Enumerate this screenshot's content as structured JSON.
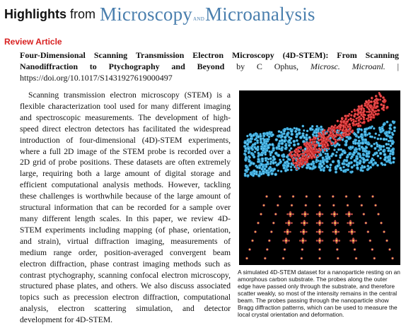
{
  "header": {
    "highlights": "Highlights",
    "from": "from",
    "journal_logo": {
      "part1": "Microscopy",
      "and": "AND",
      "part2": "Microanalysis",
      "color": "#4a7fae"
    }
  },
  "section_label": "Review Article",
  "citation": {
    "title": "Four-Dimensional Scanning Transmission Electron Microscopy (4D-STEM): From Scanning Nanodiffraction to Ptychography and Beyond",
    "by": " by C Ophus, ",
    "journal": "Microsc. Microanl.",
    "separator": " | ",
    "doi": "https://doi.org/10.1017/S1431927619000497"
  },
  "body": "Scanning transmission electron microscopy (STEM) is a flexible characterization tool used for many different imaging and spectroscopic measurements. The development of high-speed direct electron detectors has facilitated the widespread introduction of four-dimensional (4D)-STEM experiments, where a full 2D image of the STEM probe is recorded over a 2D grid of probe positions. These datasets are often extremely large, requiring both a large amount of digital storage and efficient computational analysis methods. However, tackling these challenges is worthwhile because of the large amount of structural information that can be recorded for a sample over many different length scales. In this paper, we review 4D-STEM experiments including mapping (of phase, orientation, and strain), virtual diffraction imaging, measurements of medium range order, position-averaged convergent beam electron diffraction, phase contrast imaging methods such as contrast ptychography, scanning confocal electron microscopy, structured phase plates, and others. We also discuss associated topics such as precession electron diffraction, computational analysis, electron scattering simulation, and detector development for 4D-STEM.",
  "figure": {
    "caption": "A simulated 4D-STEM dataset for a nanoparticle resting on an amorphous carbon substrate. The probes along the outer edge have passed only through the substrate, and therefore scatter weakly, so most of the intensity remains in the central beam. The probes passing through the nanoparticle show Bragg diffraction patterns, which can be used to measure the local crystal orientation and deformation.",
    "colors": {
      "beam": "#e01818",
      "substrate": "#2bb2e6",
      "diffraction": "#f0a020"
    }
  }
}
